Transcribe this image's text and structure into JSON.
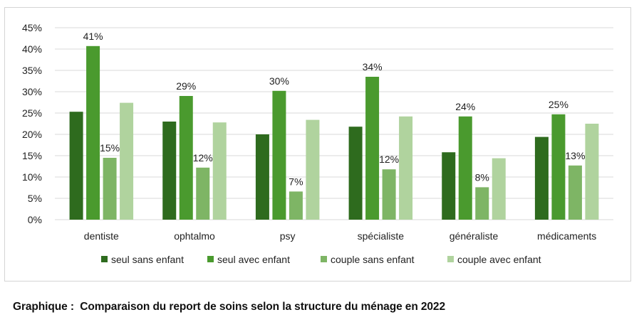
{
  "caption": "Graphique :  Comparaison du report de soins selon la structure du ménage en 2022",
  "colors": {
    "seul_sans_enfant": "#2e6b1e",
    "seul_avec_enfant": "#4a9a2e",
    "couple_sans_enfant": "#7eb565",
    "couple_avec_enfant": "#b0d39e",
    "grid": "#d9d9d9"
  },
  "chart_data": {
    "type": "bar",
    "title": "",
    "xlabel": "",
    "ylabel": "",
    "ylim": [
      0,
      45
    ],
    "yticks": [
      "0%",
      "5%",
      "10%",
      "15%",
      "20%",
      "25%",
      "30%",
      "35%",
      "40%",
      "45%"
    ],
    "ytick_values": [
      0,
      5,
      10,
      15,
      20,
      25,
      30,
      35,
      40,
      45
    ],
    "grid": true,
    "legend_position": "bottom",
    "categories": [
      "dentiste",
      "ophtalmo",
      "psy",
      "spécialiste",
      "généraliste",
      "médicaments"
    ],
    "series": [
      {
        "name": "seul sans enfant",
        "values": [
          25.3,
          23.0,
          20.0,
          21.8,
          15.8,
          19.4
        ],
        "labels": [
          "",
          "",
          "",
          "",
          "",
          ""
        ]
      },
      {
        "name": "seul avec enfant",
        "values": [
          40.7,
          29.0,
          30.2,
          33.5,
          24.2,
          24.7
        ],
        "labels": [
          "41%",
          "29%",
          "30%",
          "34%",
          "24%",
          "25%"
        ]
      },
      {
        "name": "couple sans enfant",
        "values": [
          14.5,
          12.2,
          6.6,
          11.8,
          7.6,
          12.7
        ],
        "labels": [
          "15%",
          "12%",
          "7%",
          "12%",
          "8%",
          "13%"
        ]
      },
      {
        "name": "couple avec enfant",
        "values": [
          27.4,
          22.8,
          23.4,
          24.2,
          14.4,
          22.5
        ],
        "labels": [
          "",
          "",
          "",
          "",
          "",
          ""
        ]
      }
    ]
  }
}
